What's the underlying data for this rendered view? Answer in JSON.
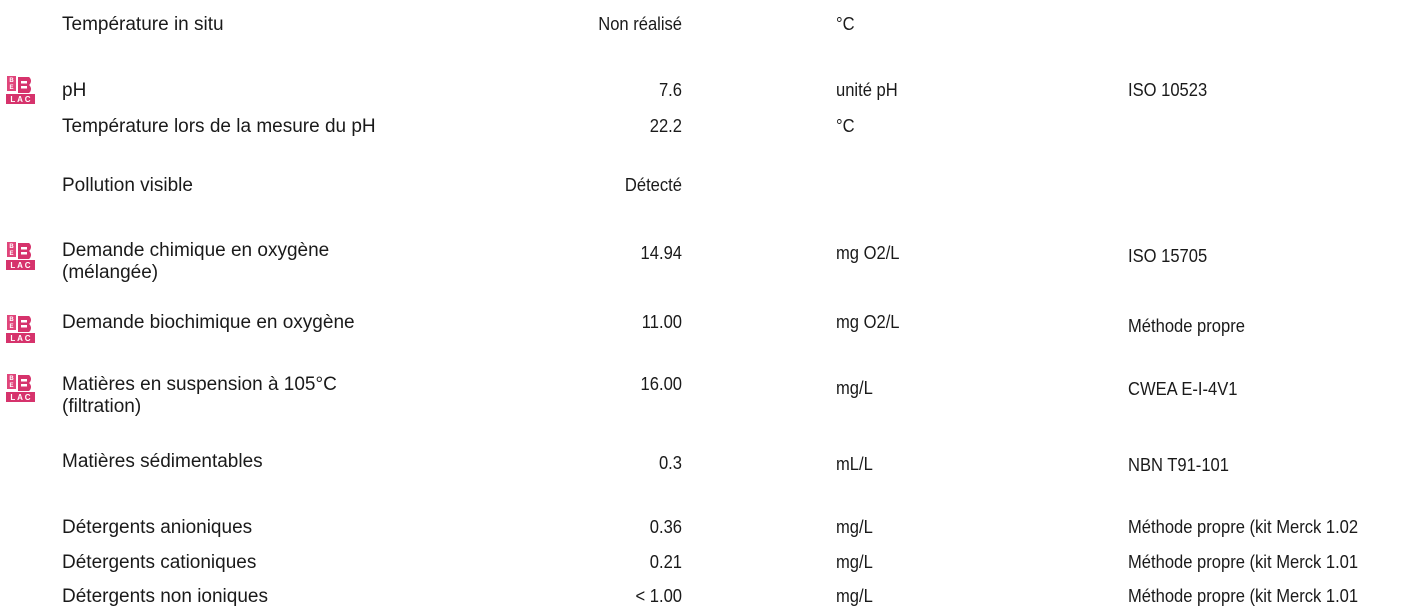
{
  "rows": [
    {
      "label": "Température in situ",
      "label2": "",
      "value": "Non réalisé",
      "unit": "°C",
      "method": "",
      "belac": false
    },
    {
      "label": "pH",
      "label2": "",
      "value": "7.6",
      "unit": "unité pH",
      "method": "ISO 10523",
      "belac": true
    },
    {
      "label": "Température lors de la mesure du pH",
      "label2": "",
      "value": "22.2",
      "unit": "°C",
      "method": "",
      "belac": false
    },
    {
      "label": "Pollution visible",
      "label2": "",
      "value": "Détecté",
      "unit": "",
      "method": "",
      "belac": false
    },
    {
      "label": "Demande chimique en oxygène",
      "label2": "(mélangée)",
      "value": "14.94",
      "unit": "mg O2/L",
      "method": "ISO 15705",
      "belac": true
    },
    {
      "label": "Demande biochimique en oxygène",
      "label2": "",
      "value": "11.00",
      "unit": "mg O2/L",
      "method": "Méthode propre",
      "belac": true
    },
    {
      "label": "Matières en suspension à 105°C",
      "label2": "(filtration)",
      "value": "16.00",
      "unit": "mg/L",
      "method": "CWEA E-I-4V1",
      "belac": true
    },
    {
      "label": "Matières sédimentables",
      "label2": "",
      "value": "0.3",
      "unit": "mL/L",
      "method": "NBN T91-101",
      "belac": false
    },
    {
      "label": "Détergents anioniques",
      "label2": "",
      "value": "0.36",
      "unit": "mg/L",
      "method": "Méthode propre (kit Merck 1.02",
      "belac": false
    },
    {
      "label": "Détergents cationiques",
      "label2": "",
      "value": "0.21",
      "unit": "mg/L",
      "method": "Méthode propre (kit Merck 1.01",
      "belac": false
    },
    {
      "label": "Détergents non ioniques",
      "label2": "",
      "value": "< 1.00",
      "unit": "mg/L",
      "method": "Méthode propre (kit Merck 1.01",
      "belac": false
    }
  ],
  "badge": {
    "name": "belac-accreditation-icon",
    "letters_top": [
      "B",
      "E"
    ],
    "letters_bottom": [
      "L",
      "A",
      "C"
    ],
    "color": "#d6336c"
  }
}
